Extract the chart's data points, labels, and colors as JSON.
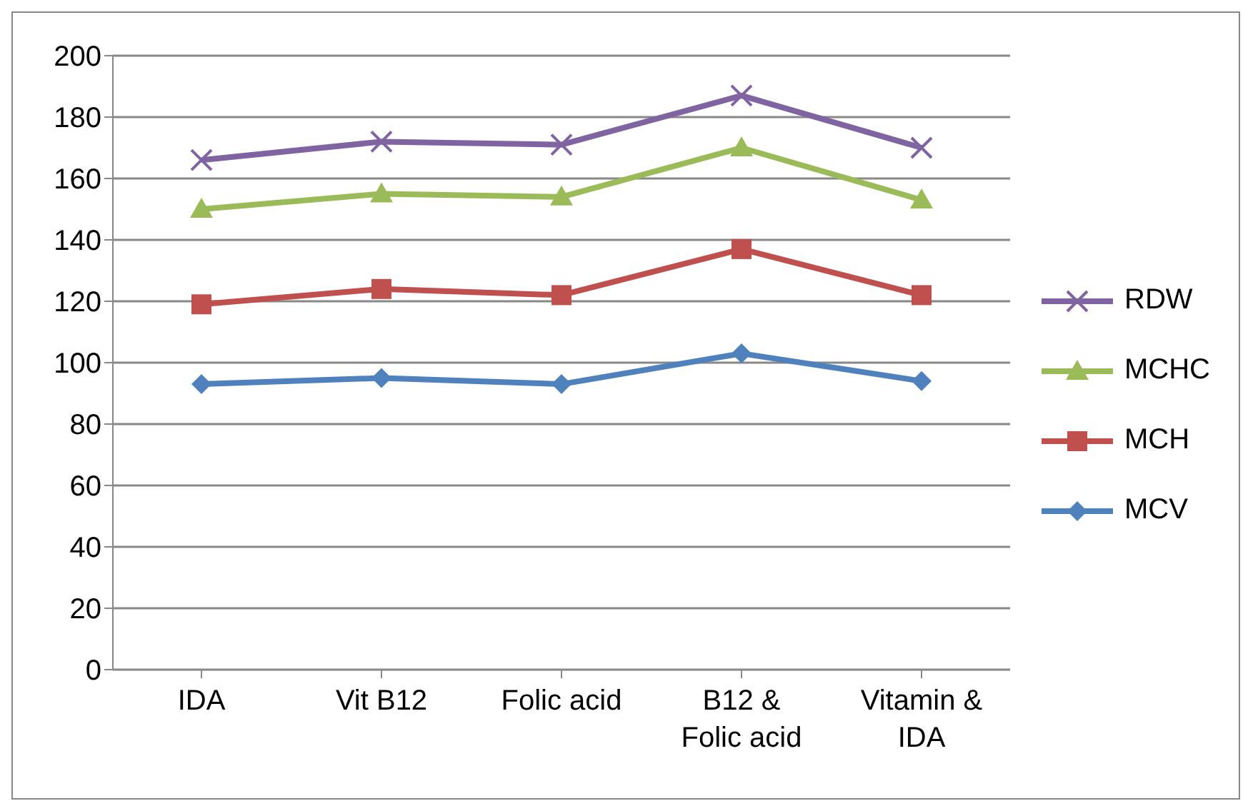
{
  "chart_data": {
    "type": "line",
    "categories": [
      "IDA",
      "Vit B12",
      "Folic acid",
      "B12 & Folic acid",
      "Vitamin & IDA"
    ],
    "series": [
      {
        "name": "MCV",
        "color": "#4f81bd",
        "marker": "diamond",
        "values": [
          93,
          95,
          93,
          103,
          94
        ]
      },
      {
        "name": "MCH",
        "color": "#c0504d",
        "marker": "square",
        "values": [
          119,
          124,
          122,
          137,
          122
        ]
      },
      {
        "name": "MCHC",
        "color": "#9bbb59",
        "marker": "triangle",
        "values": [
          150,
          155,
          154,
          170,
          153
        ]
      },
      {
        "name": "RDW",
        "color": "#8064a2",
        "marker": "cross",
        "values": [
          166,
          172,
          171,
          187,
          170
        ]
      }
    ],
    "ylim": [
      0,
      200
    ],
    "yticks": [
      0,
      20,
      40,
      60,
      80,
      100,
      120,
      140,
      160,
      180,
      200
    ],
    "grid": "y",
    "legend": "right"
  }
}
